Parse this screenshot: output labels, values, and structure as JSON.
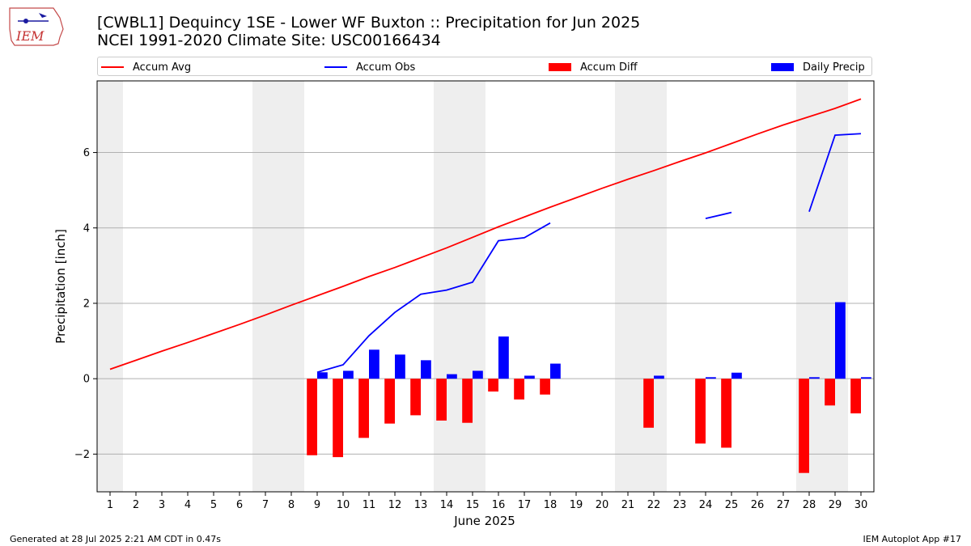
{
  "header": {
    "logo_text": "IEM",
    "title_line1": "[CWBL1] Dequincy 1SE - Lower WF Buxton :: Precipitation for Jun 2025",
    "title_line2": "NCEI 1991-2020 Climate Site: USC00166434"
  },
  "legend": {
    "items": [
      {
        "label": "Accum Avg",
        "kind": "line",
        "color": "#ff0000"
      },
      {
        "label": "Accum Obs",
        "kind": "line",
        "color": "#0000ff"
      },
      {
        "label": "Accum Diff",
        "kind": "bar",
        "color": "#ff0000"
      },
      {
        "label": "Daily Precip",
        "kind": "bar",
        "color": "#0000ff"
      }
    ]
  },
  "footer": {
    "left": "Generated at 28 Jul 2025 2:21 AM CDT in 0.47s",
    "right": "IEM Autoplot App #17"
  },
  "chart_data": {
    "type": "bar",
    "xlabel": "June 2025",
    "ylabel": "Precipitation [inch]",
    "xlim": [
      0.5,
      30.5
    ],
    "ylim": [
      -3.0,
      7.9
    ],
    "yticks": [
      -2,
      0,
      2,
      4,
      6
    ],
    "xticks": [
      1,
      2,
      3,
      4,
      5,
      6,
      7,
      8,
      9,
      10,
      11,
      12,
      13,
      14,
      15,
      16,
      17,
      18,
      19,
      20,
      21,
      22,
      23,
      24,
      25,
      26,
      27,
      28,
      29,
      30
    ],
    "grid": "horizontal",
    "weekend_shading": [
      [
        0.5,
        1.5
      ],
      [
        6.5,
        8.5
      ],
      [
        13.5,
        15.5
      ],
      [
        20.5,
        22.5
      ],
      [
        27.5,
        29.5
      ]
    ],
    "accum_avg": {
      "x": [
        1,
        2,
        3,
        4,
        5,
        6,
        7,
        8,
        9,
        10,
        11,
        12,
        13,
        14,
        15,
        16,
        17,
        18,
        19,
        20,
        21,
        22,
        23,
        24,
        25,
        26,
        27,
        28,
        29,
        30
      ],
      "y": [
        0.25,
        0.49,
        0.73,
        0.96,
        1.2,
        1.44,
        1.69,
        1.95,
        2.2,
        2.45,
        2.71,
        2.95,
        3.21,
        3.47,
        3.75,
        4.03,
        4.29,
        4.55,
        4.8,
        5.05,
        5.29,
        5.52,
        5.76,
        5.99,
        6.24,
        6.49,
        6.73,
        6.95,
        7.17,
        7.42
      ]
    },
    "accum_obs_segments": [
      {
        "x": [
          9,
          10,
          11,
          12,
          13,
          14,
          15,
          16,
          17,
          18
        ],
        "y": [
          0.17,
          0.37,
          1.14,
          1.76,
          2.24,
          2.35,
          2.56,
          3.66,
          3.74,
          4.13
        ]
      },
      {
        "x": [
          24,
          25
        ],
        "y": [
          4.25,
          4.41
        ]
      },
      {
        "x": [
          28,
          29,
          30
        ],
        "y": [
          4.43,
          6.46,
          6.5
        ]
      }
    ],
    "accum_diff": {
      "x": [
        9,
        10,
        11,
        12,
        13,
        14,
        15,
        16,
        17,
        18,
        22,
        24,
        25,
        28,
        29,
        30
      ],
      "y": [
        -2.03,
        -2.08,
        -1.57,
        -1.19,
        -0.97,
        -1.11,
        -1.17,
        -0.34,
        -0.55,
        -0.42,
        -1.3,
        -1.72,
        -1.83,
        -2.5,
        -0.71,
        -0.92
      ]
    },
    "daily_precip": {
      "x": [
        9,
        10,
        11,
        12,
        13,
        14,
        15,
        16,
        17,
        18,
        22,
        24,
        25,
        28,
        29,
        30
      ],
      "y": [
        0.17,
        0.21,
        0.77,
        0.64,
        0.49,
        0.12,
        0.21,
        1.12,
        0.08,
        0.4,
        0.08,
        0.04,
        0.16,
        0.04,
        2.03,
        0.04
      ]
    }
  }
}
